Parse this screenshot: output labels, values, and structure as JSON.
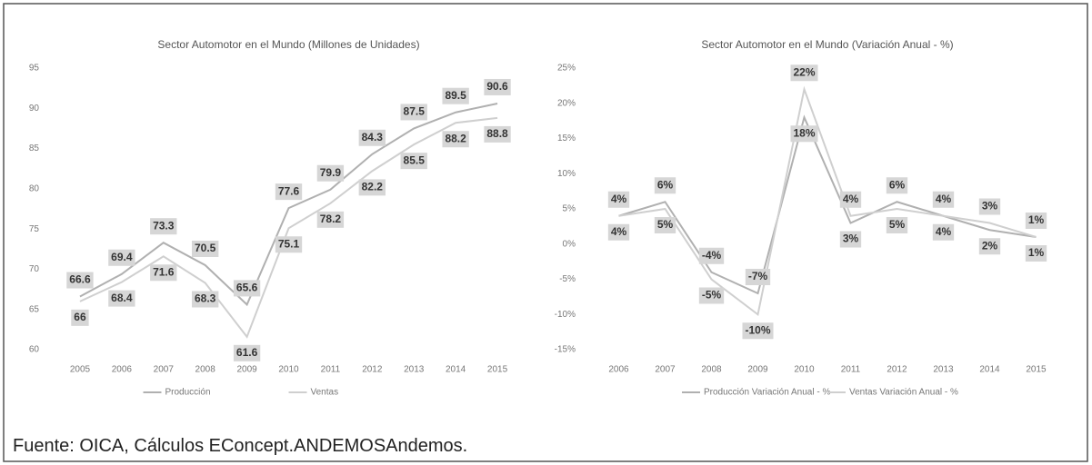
{
  "chart_data": [
    {
      "type": "line",
      "title": "Sector Automotor en el Mundo (Millones de Unidades)",
      "categories": [
        "2005",
        "2006",
        "2007",
        "2008",
        "2009",
        "2010",
        "2011",
        "2012",
        "2013",
        "2014",
        "2015"
      ],
      "series": [
        {
          "name": "Producción",
          "color": "#b0b0b0",
          "values": [
            66.6,
            69.4,
            73.3,
            70.5,
            65.6,
            77.6,
            79.9,
            84.3,
            87.5,
            89.5,
            90.6
          ]
        },
        {
          "name": "Ventas",
          "color": "#cfcfcf",
          "values": [
            66,
            68.4,
            71.6,
            68.3,
            61.6,
            75.1,
            78.2,
            82.2,
            85.5,
            88.2,
            88.8
          ]
        }
      ],
      "ylim": [
        60,
        95
      ],
      "yticks": [
        60,
        65,
        70,
        75,
        80,
        85,
        90,
        95
      ],
      "grid": false,
      "legend": "bottom"
    },
    {
      "type": "line",
      "title": "Sector Automotor en el Mundo (Variación Anual - %)",
      "categories": [
        "2006",
        "2007",
        "2008",
        "2009",
        "2010",
        "2011",
        "2012",
        "2013",
        "2014",
        "2015"
      ],
      "series": [
        {
          "name": "Producción Variación Anual - %",
          "color": "#b0b0b0",
          "values": [
            4,
            6,
            -4,
            -7,
            18,
            3,
            6,
            4,
            2,
            1
          ],
          "value_labels": [
            "4%",
            "6%",
            "-4%",
            "-7%",
            "18%",
            "3%",
            "6%",
            "4%",
            "2%",
            "1%"
          ]
        },
        {
          "name": "Ventas Variación Anual - %",
          "color": "#cfcfcf",
          "values": [
            4,
            5,
            -5,
            -10,
            22,
            4,
            5,
            4,
            3,
            1
          ],
          "value_labels": [
            "4%",
            "5%",
            "-5%",
            "-10%",
            "22%",
            "4%",
            "5%",
            "4%",
            "3%",
            "1%"
          ]
        }
      ],
      "ylim": [
        -15,
        25
      ],
      "yticks": [
        {
          "value": -15,
          "label": "-15%"
        },
        {
          "value": -10,
          "label": "-10%"
        },
        {
          "value": -5,
          "label": "-5%"
        },
        {
          "value": 0,
          "label": "0%"
        },
        {
          "value": 5,
          "label": "5%"
        },
        {
          "value": 10,
          "label": "10%"
        },
        {
          "value": 15,
          "label": "15%"
        },
        {
          "value": 20,
          "label": "20%"
        },
        {
          "value": 25,
          "label": "25%"
        }
      ],
      "grid": false,
      "legend": "bottom"
    }
  ],
  "footer": {
    "source": "Fuente: OICA, Cálculos EConcept.ANDEMOSAndemos."
  }
}
